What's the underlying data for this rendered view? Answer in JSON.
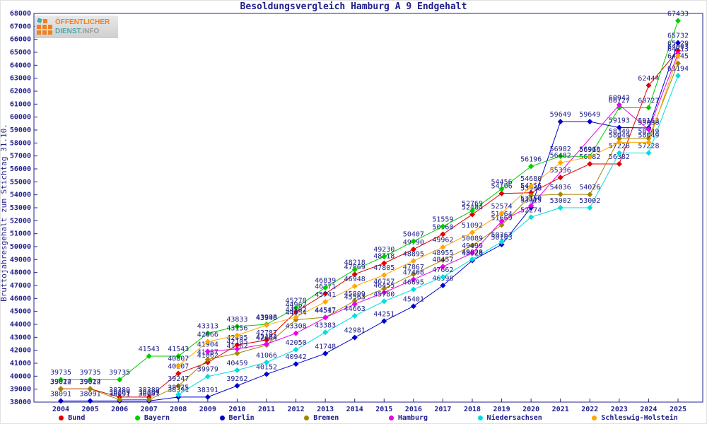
{
  "title": "Besoldungsvergleich Hamburg A 9 Endgehalt",
  "logo": {
    "line1": "ÖFFENTLICHER",
    "line2_a": "DIENST.",
    "line2_b": "INFO"
  },
  "colors": {
    "axis_text": "#21218c",
    "plot_border": "#21218c",
    "label_text": "#21218c"
  },
  "chart_data": {
    "type": "line",
    "title": "Besoldungsvergleich Hamburg A 9 Endgehalt",
    "xlabel": "",
    "ylabel": "Bruttojahresgehalt zum Stichtag 31.10.",
    "ylim": [
      38000,
      68000
    ],
    "ytick_step": 1000,
    "grid": false,
    "legend_position": "bottom",
    "categories": [
      2004,
      2005,
      2006,
      2007,
      2008,
      2009,
      2010,
      2011,
      2012,
      2013,
      2014,
      2015,
      2016,
      2017,
      2018,
      2019,
      2020,
      2021,
      2022,
      2023,
      2024,
      2025
    ],
    "series": [
      {
        "name": "Bund",
        "color": "#e00000",
        "values": [
          39024,
          39024,
          38389,
          38389,
          40207,
          41062,
          42405,
          42787,
          44962,
          46371,
          47869,
          48718,
          49790,
          50960,
          52484,
          54106,
          54156,
          55336,
          56382,
          56382,
          62444,
          65129
        ]
      },
      {
        "name": "Bayern",
        "color": "#00cc00",
        "values": [
          39735,
          39735,
          39735,
          41543,
          41543,
          43313,
          43833,
          43998,
          45278,
          46839,
          48218,
          49230,
          50407,
          51559,
          52769,
          54456,
          56196,
          56982,
          56963,
          60727,
          60727,
          67433
        ]
      },
      {
        "name": "Berlin",
        "color": "#0000d0",
        "values": [
          38091,
          38091,
          38091,
          38091,
          38391,
          38391,
          39262,
          40152,
          40942,
          41748,
          42981,
          44251,
          45401,
          46998,
          48928,
          50163,
          53015,
          59649,
          59649,
          59193,
          59163,
          65732
        ]
      },
      {
        "name": "Bremen",
        "color": "#a08800",
        "values": [
          39012,
          39012,
          38189,
          38189,
          39247,
          41287,
          41762,
          42404,
          44354,
          44547,
          45809,
          46757,
          47867,
          48955,
          50089,
          51669,
          53948,
          54036,
          54026,
          58349,
          58349,
          64145
        ]
      },
      {
        "name": "Hamburg",
        "color": "#e800e8",
        "values": [
          null,
          null,
          null,
          null,
          null,
          41904,
          42105,
          42484,
          43308,
          44517,
          45563,
          46455,
          47468,
          48457,
          49499,
          51964,
          53160,
          null,
          null,
          60942,
          59038,
          64903
        ]
      },
      {
        "name": "Niedersachsen",
        "color": "#00dede",
        "values": [
          null,
          null,
          null,
          null,
          38575,
          39979,
          40459,
          41066,
          42050,
          43383,
          44663,
          45780,
          46695,
          47662,
          49028,
          50363,
          52274,
          53002,
          53002,
          57228,
          57228,
          63194
        ]
      },
      {
        "name": "Schleswig-Holstein",
        "color": "#ffa800",
        "values": [
          null,
          null,
          null,
          null,
          40807,
          42666,
          43156,
          43940,
          44562,
          45741,
          46948,
          47805,
          48895,
          49962,
          51092,
          52574,
          54680,
          56482,
          56916,
          58049,
          58049,
          64713
        ]
      }
    ]
  }
}
